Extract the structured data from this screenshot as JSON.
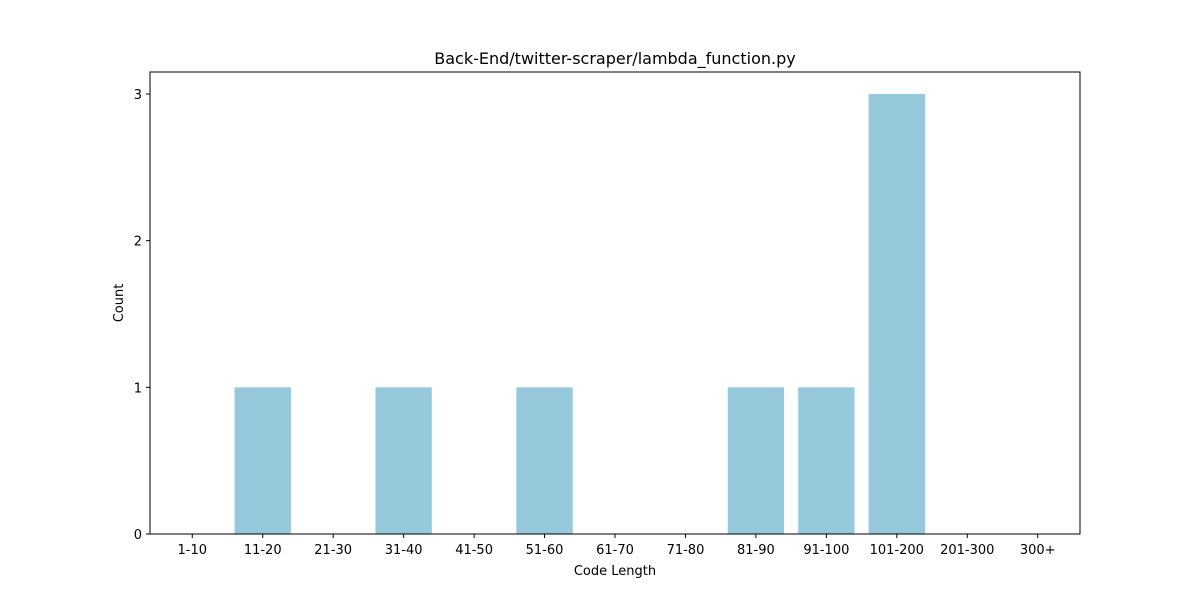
{
  "chart_data": {
    "type": "bar",
    "title": "Back-End/twitter-scraper/lambda_function.py",
    "xlabel": "Code Length",
    "ylabel": "Count",
    "categories": [
      "1-10",
      "11-20",
      "21-30",
      "31-40",
      "41-50",
      "51-60",
      "61-70",
      "71-80",
      "81-90",
      "91-100",
      "101-200",
      "201-300",
      "300+"
    ],
    "values": [
      0,
      1,
      0,
      1,
      0,
      1,
      0,
      0,
      1,
      1,
      3,
      0,
      0
    ],
    "yticks": [
      "0",
      "1",
      "2",
      "3"
    ],
    "ylim": [
      0,
      3.15
    ],
    "bar_color": "#96c9dc",
    "grid": false,
    "legend": "none"
  }
}
